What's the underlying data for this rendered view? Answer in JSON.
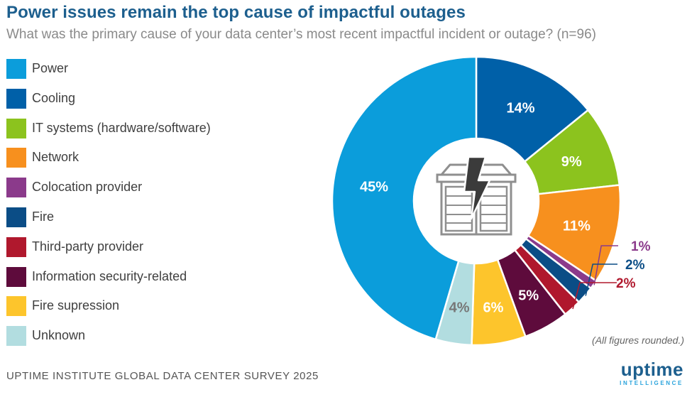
{
  "header": {
    "title": "Power issues remain the top cause of impactful outages",
    "subtitle": "What was the primary cause of your data center’s most recent impactful incident or outage? (n=96)"
  },
  "chart_data": {
    "type": "pie",
    "variant": "donut",
    "start": "12 o'clock",
    "direction": "clockwise",
    "slices": [
      {
        "name": "Cooling",
        "value": 14,
        "label": "14%",
        "color": "#0060a8",
        "label_color": "#ffffff",
        "label_placement": "inside"
      },
      {
        "name": "IT systems (hardware/software)",
        "value": 9,
        "label": "9%",
        "color": "#8cc31e",
        "label_color": "#ffffff",
        "label_placement": "inside"
      },
      {
        "name": "Network",
        "value": 11,
        "label": "11%",
        "color": "#f7901e",
        "label_color": "#ffffff",
        "label_placement": "inside"
      },
      {
        "name": "Colocation provider",
        "value": 1,
        "label": "1%",
        "color": "#8b3a8b",
        "label_color": "#8b3a8b",
        "label_placement": "outside"
      },
      {
        "name": "Fire",
        "value": 2,
        "label": "2%",
        "color": "#0b4d86",
        "label_color": "#0b4d86",
        "label_placement": "outside"
      },
      {
        "name": "Third-party provider",
        "value": 2,
        "label": "2%",
        "color": "#b0182d",
        "label_color": "#b0182d",
        "label_placement": "outside"
      },
      {
        "name": "Information security-related",
        "value": 5,
        "label": "5%",
        "color": "#5e0b3c",
        "label_color": "#ffffff",
        "label_placement": "inside"
      },
      {
        "name": "Fire supression",
        "value": 6,
        "label": "6%",
        "color": "#fdc52c",
        "label_color": "#ffffff",
        "label_placement": "inside"
      },
      {
        "name": "Unknown",
        "value": 4,
        "label": "4%",
        "color": "#b2dde0",
        "label_color": "#777777",
        "label_placement": "inside"
      },
      {
        "name": "Power",
        "value": 45,
        "label": "45%",
        "color": "#0b9ddb",
        "label_color": "#ffffff",
        "label_placement": "inside"
      }
    ],
    "center_icon": "data-center-lightning-icon",
    "note": "(All figures rounded.)"
  },
  "legend": {
    "items": [
      {
        "label": "Power",
        "color": "#0b9ddb"
      },
      {
        "label": "Cooling",
        "color": "#0060a8"
      },
      {
        "label": "IT systems (hardware/software)",
        "color": "#8cc31e"
      },
      {
        "label": "Network",
        "color": "#f7901e"
      },
      {
        "label": "Colocation provider",
        "color": "#8b3a8b"
      },
      {
        "label": "Fire",
        "color": "#0b4d86"
      },
      {
        "label": "Third-party provider",
        "color": "#b0182d"
      },
      {
        "label": "Information security-related",
        "color": "#5e0b3c"
      },
      {
        "label": "Fire supression",
        "color": "#fdc52c"
      },
      {
        "label": "Unknown",
        "color": "#b2dde0"
      }
    ]
  },
  "footer": {
    "source": "UPTIME INSTITUTE GLOBAL DATA CENTER SURVEY 2025",
    "logo_word": "uptime",
    "logo_sub": "INTELLIGENCE"
  }
}
